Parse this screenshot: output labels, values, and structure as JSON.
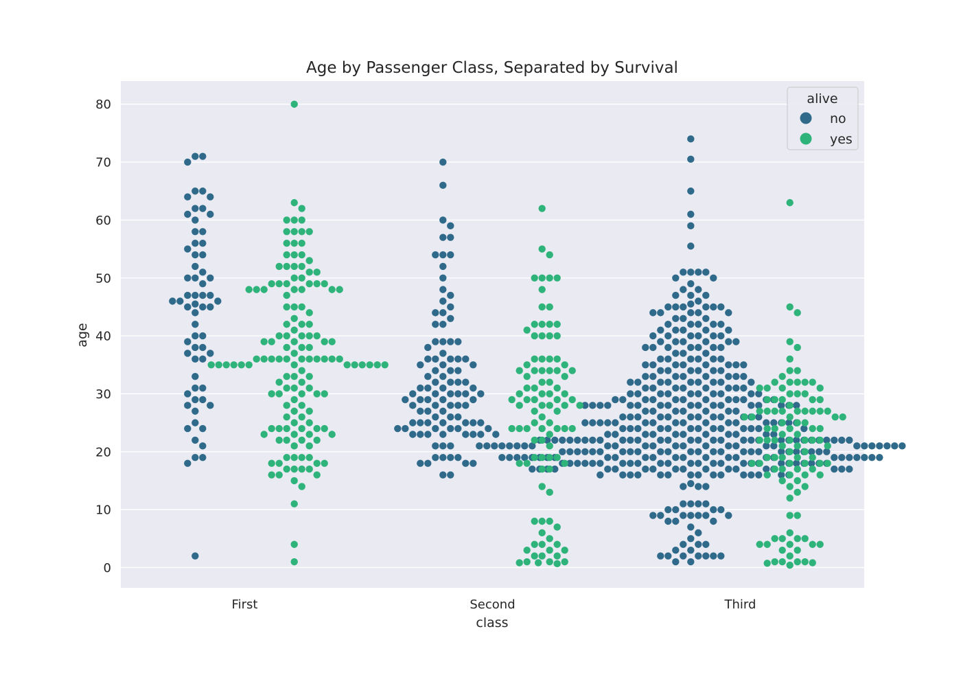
{
  "chart_data": {
    "type": "scatter",
    "subtype": "swarm",
    "title": "Age by Passenger Class, Separated by Survival",
    "xlabel": "class",
    "ylabel": "age",
    "categories": [
      "First",
      "Second",
      "Third"
    ],
    "yticks": [
      0,
      10,
      20,
      30,
      40,
      50,
      60,
      70,
      80
    ],
    "ylim": [
      -3.5,
      84
    ],
    "grid": true,
    "legend": {
      "title": "alive",
      "placement": "top-right",
      "entries": [
        "no",
        "yes"
      ]
    },
    "colors": {
      "no": "#2f6a8a",
      "yes": "#2eb37a",
      "background": "#eaeaf2",
      "grid": "#ffffff"
    },
    "series": [
      {
        "name": "no",
        "ages": {
          "First": [
            2,
            18,
            19,
            19,
            21,
            22,
            24,
            24,
            25,
            27,
            28,
            28,
            29,
            29,
            30,
            31,
            31,
            33,
            36,
            36,
            37,
            37,
            38,
            38,
            39,
            40,
            40,
            42,
            44,
            45,
            45,
            45,
            45.5,
            46,
            46,
            46,
            47,
            47,
            47,
            47,
            49,
            50,
            50,
            50,
            51,
            52,
            54,
            54,
            55,
            56,
            56,
            58,
            58,
            60,
            61,
            61,
            62,
            62,
            64,
            64,
            65,
            65,
            70,
            71,
            71
          ],
          "Second": [
            16,
            16,
            18,
            18,
            18,
            18,
            19,
            19,
            19,
            19,
            21,
            21,
            21,
            23,
            23,
            23,
            23,
            23,
            23,
            23,
            23,
            24,
            24,
            24,
            24,
            24,
            24,
            25,
            25,
            25,
            25,
            25,
            25,
            25,
            26,
            26,
            26,
            27,
            27,
            27,
            28,
            28,
            28,
            28,
            28,
            29,
            29,
            29,
            29,
            29,
            30,
            30,
            30,
            30,
            30,
            30,
            31,
            31,
            31,
            31,
            32,
            32,
            32,
            32,
            33,
            33,
            34,
            34,
            34,
            35,
            35,
            35,
            36,
            36,
            36,
            36,
            36,
            37,
            38,
            39,
            39,
            39,
            39,
            42,
            42,
            43,
            44,
            44,
            45,
            46,
            47,
            48,
            50,
            52,
            54,
            54,
            54,
            57,
            57,
            59,
            60,
            66,
            70
          ],
          "Third": [
            1,
            1,
            2,
            2,
            2,
            2,
            2,
            2,
            2,
            3,
            3,
            4,
            4,
            4,
            5,
            6,
            7,
            8,
            8,
            8,
            9,
            9,
            9,
            9,
            9,
            9,
            9,
            10,
            10,
            10,
            10,
            11,
            11,
            11,
            11,
            14,
            14,
            14,
            14.5,
            16,
            16,
            16,
            16,
            16,
            16,
            16,
            16,
            16,
            16,
            16,
            16,
            16,
            16,
            16,
            17,
            17,
            17,
            17,
            17,
            17,
            17,
            17,
            17,
            17,
            17,
            17,
            17,
            17,
            17,
            17,
            17,
            17,
            18,
            18,
            18,
            18,
            18,
            18,
            18,
            18,
            18,
            18,
            18,
            18,
            18,
            18,
            18,
            18,
            18,
            18,
            18,
            18,
            18,
            18,
            18,
            18,
            18,
            19,
            19,
            19,
            19,
            19,
            19,
            19,
            19,
            19,
            19,
            19,
            19,
            19,
            19,
            19,
            19,
            19,
            19,
            19,
            19,
            19,
            19,
            19,
            19,
            19,
            19,
            20,
            20,
            20,
            20,
            20,
            20,
            20,
            20,
            20,
            20,
            20,
            20,
            20,
            20,
            20,
            20,
            20,
            20,
            20,
            20,
            20,
            20,
            20,
            20,
            20,
            21,
            21,
            21,
            21,
            21,
            21,
            21,
            21,
            21,
            21,
            21,
            21,
            21,
            21,
            21,
            21,
            21,
            21,
            21,
            21,
            21,
            21,
            21,
            21,
            21,
            21,
            22,
            22,
            22,
            22,
            22,
            22,
            22,
            22,
            22,
            22,
            22,
            22,
            22,
            22,
            22,
            22,
            22,
            22,
            22,
            22,
            22,
            22,
            22,
            22,
            22,
            22,
            22,
            22,
            22,
            22,
            22,
            23,
            23,
            23,
            23,
            23,
            23,
            23,
            23,
            23,
            23,
            23,
            24,
            24,
            24,
            24,
            24,
            24,
            24,
            24,
            24,
            24,
            24,
            24,
            24,
            25,
            25,
            25,
            25,
            25,
            25,
            25,
            25,
            25,
            25,
            25,
            25,
            25,
            25,
            25,
            25,
            25,
            26,
            26,
            26,
            26,
            26,
            26,
            26,
            26,
            26,
            26,
            26,
            26,
            27,
            27,
            27,
            27,
            27,
            27,
            27,
            28,
            28,
            28,
            28,
            28,
            28,
            28,
            28,
            28,
            28,
            28,
            28,
            28,
            28,
            28,
            28,
            28,
            29,
            29,
            29,
            29,
            29,
            29,
            29,
            29,
            29,
            29,
            29,
            29,
            30,
            30,
            30,
            30,
            30,
            30,
            30,
            30,
            30,
            30,
            31,
            31,
            31,
            31,
            31,
            31,
            31,
            31,
            32,
            32,
            32,
            32,
            32,
            32,
            32,
            32,
            32,
            33,
            33,
            33,
            33,
            33,
            33,
            33,
            33,
            34,
            34,
            34,
            34,
            34,
            34,
            35,
            35,
            35,
            35,
            35,
            35,
            35,
            35,
            36,
            36,
            36,
            36,
            36,
            36,
            37,
            37,
            37,
            38,
            38,
            38,
            38,
            38,
            38,
            38,
            39,
            39,
            39,
            39,
            39,
            39,
            40,
            40,
            40,
            40,
            40,
            40,
            41,
            41,
            41,
            41,
            41,
            42,
            42,
            42,
            42,
            42,
            43,
            43,
            43,
            44,
            44,
            44,
            44,
            44,
            45,
            45,
            45,
            45,
            45,
            45,
            45.5,
            46,
            47,
            47,
            47,
            48,
            48,
            49,
            50,
            50,
            51,
            51,
            51,
            51,
            55.5,
            59,
            61,
            65,
            70.5,
            74
          ]
        }
      },
      {
        "name": "yes",
        "ages": {
          "First": [
            1,
            4,
            11,
            14,
            15,
            16,
            16,
            16,
            17,
            17,
            17,
            17,
            18,
            18,
            18,
            18,
            19,
            19,
            19,
            19,
            21,
            21,
            22,
            22,
            22,
            22,
            23,
            23,
            23,
            23,
            24,
            24,
            24,
            24,
            24,
            24,
            25,
            25,
            26,
            26,
            27,
            27,
            28,
            28,
            29,
            30,
            30,
            30,
            30,
            30,
            31,
            31,
            31,
            32,
            32,
            33,
            33,
            33,
            34,
            35,
            35,
            35,
            35,
            35,
            35,
            35,
            35,
            35,
            35,
            35,
            35,
            35,
            36,
            36,
            36,
            36,
            36,
            36,
            36,
            36,
            36,
            36,
            36,
            37,
            38,
            38,
            38,
            39,
            39,
            39,
            39,
            39,
            40,
            40,
            40,
            40,
            40,
            41,
            42,
            42,
            42,
            43,
            44,
            45,
            45,
            45,
            47,
            48,
            48,
            48,
            48,
            48,
            48,
            48,
            49,
            49,
            49,
            49,
            49,
            49,
            50,
            50,
            51,
            51,
            52,
            52,
            52,
            52,
            53,
            54,
            54,
            54,
            56,
            56,
            56,
            58,
            58,
            58,
            58,
            60,
            60,
            60,
            62,
            63,
            80
          ],
          "Second": [
            0.67,
            0.83,
            0.83,
            1,
            1,
            1,
            2,
            2,
            2,
            3,
            3,
            3,
            4,
            4,
            4,
            5,
            6,
            7,
            8,
            8,
            8,
            13,
            14,
            17,
            17,
            18,
            18,
            18,
            19,
            19,
            19,
            19,
            21,
            22,
            22,
            23,
            24,
            24,
            24,
            24,
            24,
            24,
            24,
            25,
            25,
            26,
            27,
            27,
            28,
            28,
            28,
            28,
            28,
            29,
            29,
            29,
            29,
            29,
            30,
            30,
            30,
            30,
            31,
            31,
            31,
            32,
            32,
            33,
            33,
            34,
            34,
            34,
            34,
            34,
            34,
            35,
            35,
            36,
            36,
            36,
            36,
            40,
            40,
            40,
            40,
            41,
            42,
            42,
            42,
            42,
            45,
            45,
            48,
            50,
            50,
            50,
            50,
            54,
            55,
            62
          ],
          "Third": [
            0.42,
            0.75,
            0.83,
            1,
            1,
            1,
            1,
            2,
            3,
            3,
            4,
            4,
            4,
            4,
            4,
            5,
            5,
            5,
            5,
            6,
            9,
            9,
            12,
            13,
            14,
            14,
            15,
            15,
            16,
            16,
            16,
            16,
            17,
            17,
            17,
            17,
            18,
            18,
            18,
            18,
            18,
            18,
            19,
            19,
            19,
            19,
            19,
            20,
            20,
            21,
            21,
            21,
            22,
            22,
            22,
            22,
            22,
            22,
            22,
            23,
            23,
            24,
            24,
            24,
            24,
            24,
            25,
            25,
            25,
            26,
            26,
            26,
            26,
            26,
            27,
            27,
            27,
            27,
            27,
            27,
            27,
            27,
            27,
            28,
            29,
            29,
            29,
            29,
            29,
            30,
            30,
            30,
            31,
            31,
            31,
            31,
            32,
            32,
            32,
            32,
            32,
            33,
            34,
            34,
            36,
            38,
            39,
            44,
            45,
            63
          ]
        }
      }
    ]
  }
}
